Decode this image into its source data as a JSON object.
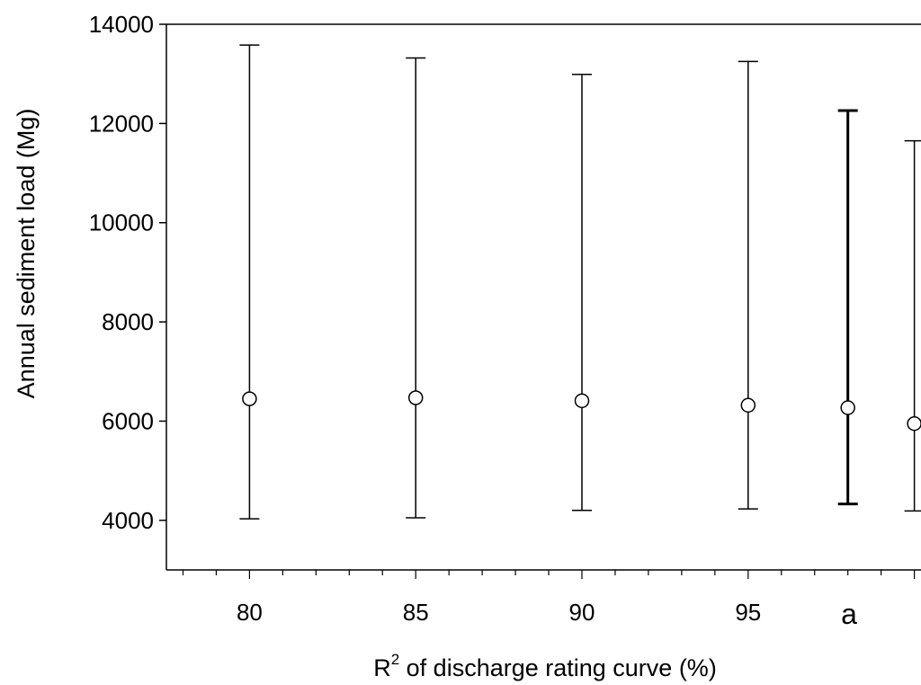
{
  "chart_data": {
    "type": "scatter",
    "xlabel": {
      "main": "R",
      "superscript": "2",
      "rest": " of discharge rating curve (%)"
    },
    "ylabel": "Annual sediment load (Mg)",
    "ylim": [
      3000,
      14000
    ],
    "yticks": [
      "4000",
      "6000",
      "8000",
      "10000",
      "12000",
      "14000"
    ],
    "xlim": [
      77.5,
      100.2
    ],
    "xticks": [
      "80",
      "85",
      "90",
      "95"
    ],
    "panel_label": "a",
    "points": [
      {
        "x": 80,
        "mean": 6450,
        "lower": 4030,
        "upper": 13580,
        "bold": false
      },
      {
        "x": 85,
        "mean": 6470,
        "lower": 4050,
        "upper": 13320,
        "bold": false
      },
      {
        "x": 90,
        "mean": 6410,
        "lower": 4200,
        "upper": 12990,
        "bold": false
      },
      {
        "x": 95,
        "mean": 6320,
        "lower": 4230,
        "upper": 13250,
        "bold": false
      },
      {
        "x": 98,
        "mean": 6270,
        "lower": 4330,
        "upper": 12260,
        "bold": true
      },
      {
        "x": 100,
        "mean": 5950,
        "lower": 4190,
        "upper": 11650,
        "bold": false
      }
    ]
  }
}
